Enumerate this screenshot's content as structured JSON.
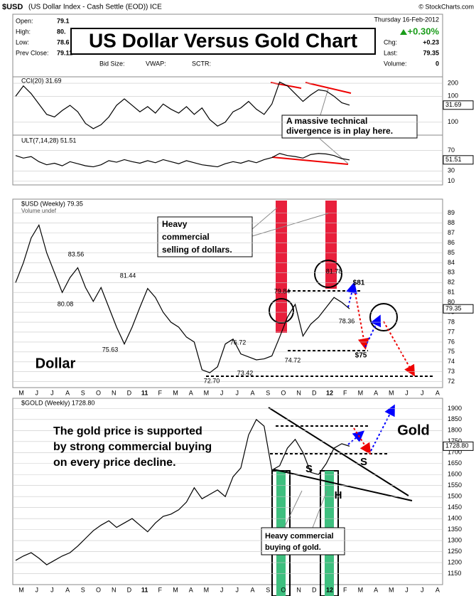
{
  "header": {
    "symbol": "$USD",
    "description": "(US Dollar Index - Cash Settle (EOD)) ICE",
    "credit": "© StockCharts.com",
    "date": "Thursday 16-Feb-2012",
    "change_pct": "+0.30%",
    "title": "US Dollar Versus Gold Chart",
    "left_fields": [
      {
        "label": "Open:",
        "value": "79.1"
      },
      {
        "label": "High:",
        "value": "80."
      },
      {
        "label": "Low:",
        "value": "78.6"
      },
      {
        "label": "Prev Close:",
        "value": "79.11"
      }
    ],
    "mid_fields": [
      "Bid Size:",
      "VWAP:",
      "SCTR:"
    ],
    "right_fields": [
      {
        "label": "Chg:",
        "value": "+0.23"
      },
      {
        "label": "Last:",
        "value": "79.35"
      },
      {
        "label": "Volume:",
        "value": "0"
      }
    ]
  },
  "chart_data": [
    {
      "type": "line",
      "title": "CCI(20) 31.69",
      "last_label": "31.69",
      "ylim": [
        -200,
        250
      ],
      "yticks": [
        200,
        100,
        {
          "value": -100,
          "label": "100"
        }
      ],
      "series": [
        {
          "name": "CCI(20)",
          "color": "#000000",
          "values": [
            100,
            180,
            120,
            40,
            -40,
            -60,
            -10,
            30,
            -20,
            -110,
            -150,
            -120,
            -60,
            30,
            80,
            30,
            -20,
            20,
            -30,
            40,
            0,
            -30,
            20,
            -40,
            10,
            -80,
            -130,
            -100,
            -20,
            10,
            60,
            0,
            -40,
            40,
            210,
            180,
            120,
            60,
            110,
            150,
            140,
            100,
            50,
            31.69
          ]
        }
      ],
      "annotation": [
        "A massive technical",
        "divergence is in play here."
      ]
    },
    {
      "type": "line",
      "title": "ULT(7,14,28) 51.51",
      "last_label": "51.51",
      "ylim": [
        0,
        90
      ],
      "yticks": [
        70,
        30,
        10
      ],
      "series": [
        {
          "name": "ULT(7,14,28)",
          "color": "#000000",
          "values": [
            60,
            55,
            58,
            48,
            42,
            45,
            40,
            48,
            44,
            40,
            38,
            42,
            50,
            47,
            52,
            48,
            45,
            50,
            46,
            52,
            48,
            44,
            50,
            46,
            42,
            40,
            38,
            44,
            48,
            45,
            50,
            46,
            52,
            56,
            64,
            60,
            58,
            55,
            62,
            64,
            63,
            60,
            54,
            51.51
          ]
        }
      ]
    },
    {
      "type": "line",
      "title": "$USD (Weekly) 79.35",
      "subtitle": "Volume undef",
      "last_label": "79.35",
      "ylim": [
        71.4,
        89.7
      ],
      "yticks": [
        72,
        73,
        74,
        75,
        76,
        77,
        78,
        79,
        80,
        81,
        82,
        83,
        84,
        85,
        86,
        87,
        88,
        89
      ],
      "series": [
        {
          "name": "$USD",
          "color": "#000000",
          "values": [
            82,
            84,
            86.5,
            87.8,
            85,
            83,
            81,
            82.5,
            83.5,
            81.5,
            80.1,
            81.5,
            79.5,
            77.5,
            75.8,
            77.5,
            79.5,
            81.4,
            80.5,
            79,
            78,
            77.5,
            76.5,
            76,
            73.2,
            72.9,
            73.5,
            75.8,
            76.3,
            74.8,
            74.5,
            74.2,
            74.3,
            74.6,
            76.5,
            78.5,
            79.8,
            76.6,
            77.8,
            78.5,
            79.5,
            80.5,
            80,
            79.35
          ]
        }
      ],
      "x_labels": [
        "M",
        "J",
        "J",
        "A",
        "S",
        "O",
        "N",
        "D",
        "11",
        "F",
        "M",
        "A",
        "M",
        "J",
        "J",
        "A",
        "S",
        "O",
        "N",
        "D",
        "12",
        "F",
        "M",
        "A",
        "M",
        "J",
        "J",
        "A"
      ],
      "annotations": [
        "83.56",
        "81.44",
        "80.08",
        "75.63",
        "76.72",
        "72.70",
        "73.42",
        "79.84",
        "74.72",
        "81.78",
        "78.36",
        "$81",
        "$75",
        "Dollar"
      ],
      "callout": [
        "Heavy",
        "commercial",
        "selling of dollars."
      ]
    },
    {
      "type": "line",
      "title": "$GOLD (Weekly) 1728.80",
      "last_label": "1728.80",
      "ylim": [
        1100,
        1940
      ],
      "yticks": [
        1150,
        1200,
        1250,
        1300,
        1350,
        1400,
        1450,
        1500,
        1550,
        1600,
        1650,
        1700,
        1750,
        1800,
        1850,
        1900
      ],
      "series": [
        {
          "name": "$GOLD",
          "color": "#000000",
          "values": [
            1210,
            1230,
            1245,
            1220,
            1190,
            1210,
            1230,
            1245,
            1275,
            1310,
            1345,
            1370,
            1390,
            1360,
            1380,
            1400,
            1370,
            1340,
            1380,
            1410,
            1420,
            1440,
            1475,
            1540,
            1490,
            1510,
            1530,
            1500,
            1590,
            1630,
            1780,
            1850,
            1820,
            1620,
            1640,
            1720,
            1760,
            1700,
            1610,
            1600,
            1650,
            1720,
            1740,
            1728.8
          ]
        }
      ],
      "x_labels": [
        "M",
        "J",
        "J",
        "A",
        "S",
        "O",
        "N",
        "D",
        "11",
        "F",
        "M",
        "A",
        "M",
        "J",
        "J",
        "A",
        "S",
        "O",
        "N",
        "D",
        "12",
        "F",
        "M",
        "A",
        "M",
        "J",
        "J",
        "A"
      ],
      "annotations": [
        "Gold",
        "S",
        "S",
        "H"
      ],
      "text_lines": [
        "The gold price is supported",
        "by strong commercial buying",
        "on every price decline."
      ],
      "callout": [
        "Heavy commercial",
        "buying of gold."
      ]
    }
  ]
}
